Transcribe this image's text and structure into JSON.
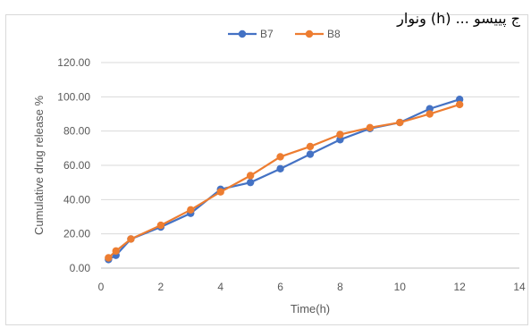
{
  "header": {
    "text": "ونوار (h) ... ج پییسو"
  },
  "chart_data": {
    "type": "line",
    "title": "",
    "xlabel": "Time(h)",
    "ylabel": "Cumulative drug release %",
    "xlim": [
      0,
      14
    ],
    "ylim": [
      0,
      120
    ],
    "x_ticks": [
      "0",
      "2",
      "4",
      "6",
      "8",
      "10",
      "12",
      "14"
    ],
    "y_ticks": [
      "0.00",
      "20.00",
      "40.00",
      "60.00",
      "80.00",
      "100.00",
      "120.00"
    ],
    "grid": "horizontal",
    "legend_position": "top",
    "series": [
      {
        "name": "B7",
        "color": "#4472c4",
        "x": [
          0.25,
          0.5,
          1,
          2,
          3,
          4,
          5,
          6,
          7,
          8,
          9,
          10,
          11,
          12
        ],
        "values": [
          5.0,
          7.5,
          17.0,
          24.0,
          32.0,
          46.0,
          50.0,
          58.0,
          66.5,
          75.0,
          81.5,
          85.0,
          93.0,
          98.5
        ]
      },
      {
        "name": "B8",
        "color": "#ed7d31",
        "x": [
          0.25,
          0.5,
          1,
          2,
          3,
          4,
          5,
          6,
          7,
          8,
          9,
          10,
          11,
          12
        ],
        "values": [
          6.0,
          10.0,
          17.0,
          25.0,
          34.0,
          44.5,
          54.0,
          65.0,
          71.0,
          78.0,
          82.0,
          85.0,
          90.0,
          95.5
        ]
      }
    ]
  }
}
